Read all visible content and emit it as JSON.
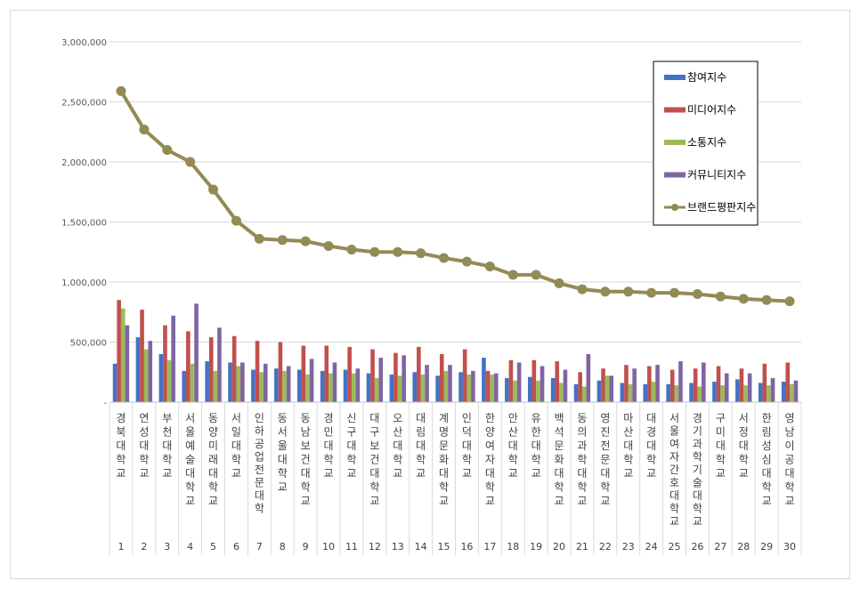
{
  "chart_data": {
    "type": "bar",
    "y_ticks": [
      "3,000,000",
      "2,500,000",
      "2,000,000",
      "1,500,000",
      "1,000,000",
      "500,000",
      "-"
    ],
    "ylim": [
      0,
      3000000
    ],
    "grid": true,
    "legend_position": "top-right",
    "categories": [
      {
        "rank": "1",
        "name": "경북대학교"
      },
      {
        "rank": "2",
        "name": "연성대학교"
      },
      {
        "rank": "3",
        "name": "부천대학교"
      },
      {
        "rank": "4",
        "name": "서울예술대학교"
      },
      {
        "rank": "5",
        "name": "동양미래대학교"
      },
      {
        "rank": "6",
        "name": "서일대학교"
      },
      {
        "rank": "7",
        "name": "인하공업전문대학"
      },
      {
        "rank": "8",
        "name": "동서울대학교"
      },
      {
        "rank": "9",
        "name": "동남보건대학교"
      },
      {
        "rank": "10",
        "name": "경민대학교"
      },
      {
        "rank": "11",
        "name": "신구대학교"
      },
      {
        "rank": "12",
        "name": "대구보건대학교"
      },
      {
        "rank": "13",
        "name": "오산대학교"
      },
      {
        "rank": "14",
        "name": "대림대학교"
      },
      {
        "rank": "15",
        "name": "계명문화대학교"
      },
      {
        "rank": "16",
        "name": "인덕대학교"
      },
      {
        "rank": "17",
        "name": "한양여자대학교"
      },
      {
        "rank": "18",
        "name": "안산대학교"
      },
      {
        "rank": "19",
        "name": "유한대학교"
      },
      {
        "rank": "20",
        "name": "백석문화대학교"
      },
      {
        "rank": "21",
        "name": "동의과학대학교"
      },
      {
        "rank": "22",
        "name": "영진전문대학교"
      },
      {
        "rank": "23",
        "name": "마산대학교"
      },
      {
        "rank": "24",
        "name": "대경대학교"
      },
      {
        "rank": "25",
        "name": "서울여자간호대학교"
      },
      {
        "rank": "26",
        "name": "경기과학기술대학교"
      },
      {
        "rank": "27",
        "name": "구미대학교"
      },
      {
        "rank": "28",
        "name": "서정대학교"
      },
      {
        "rank": "29",
        "name": "한림성심대학교"
      },
      {
        "rank": "30",
        "name": "영남이공대학교"
      }
    ],
    "series": [
      {
        "name": "참여지수",
        "kind": "bar",
        "color": "#4472c4",
        "values": [
          320000,
          540000,
          400000,
          260000,
          340000,
          330000,
          270000,
          280000,
          270000,
          260000,
          270000,
          240000,
          230000,
          250000,
          220000,
          250000,
          370000,
          200000,
          210000,
          200000,
          150000,
          180000,
          160000,
          150000,
          150000,
          160000,
          170000,
          190000,
          160000,
          170000
        ]
      },
      {
        "name": "미디어지수",
        "kind": "bar",
        "color": "#c0504d",
        "values": [
          850000,
          770000,
          640000,
          590000,
          540000,
          550000,
          510000,
          500000,
          470000,
          470000,
          460000,
          440000,
          410000,
          460000,
          400000,
          440000,
          260000,
          350000,
          350000,
          340000,
          250000,
          280000,
          310000,
          300000,
          270000,
          280000,
          300000,
          280000,
          320000,
          330000
        ]
      },
      {
        "name": "소통지수",
        "kind": "bar",
        "color": "#9bbb59",
        "values": [
          780000,
          440000,
          350000,
          320000,
          260000,
          300000,
          250000,
          260000,
          230000,
          240000,
          240000,
          200000,
          220000,
          230000,
          260000,
          230000,
          230000,
          180000,
          180000,
          160000,
          130000,
          220000,
          150000,
          170000,
          140000,
          130000,
          140000,
          140000,
          140000,
          150000
        ]
      },
      {
        "name": "커뮤니티지수",
        "kind": "bar",
        "color": "#8064a2",
        "values": [
          640000,
          510000,
          720000,
          820000,
          620000,
          330000,
          320000,
          300000,
          360000,
          330000,
          280000,
          370000,
          390000,
          310000,
          310000,
          260000,
          240000,
          330000,
          300000,
          270000,
          400000,
          220000,
          280000,
          310000,
          340000,
          330000,
          240000,
          240000,
          200000,
          180000
        ]
      },
      {
        "name": "브랜드평판지수",
        "kind": "line",
        "color": "#948a54",
        "values": [
          2590000,
          2270000,
          2100000,
          2000000,
          1770000,
          1510000,
          1360000,
          1350000,
          1340000,
          1300000,
          1270000,
          1250000,
          1250000,
          1240000,
          1200000,
          1170000,
          1130000,
          1060000,
          1060000,
          990000,
          940000,
          920000,
          920000,
          910000,
          910000,
          900000,
          880000,
          860000,
          850000,
          840000
        ]
      }
    ]
  }
}
